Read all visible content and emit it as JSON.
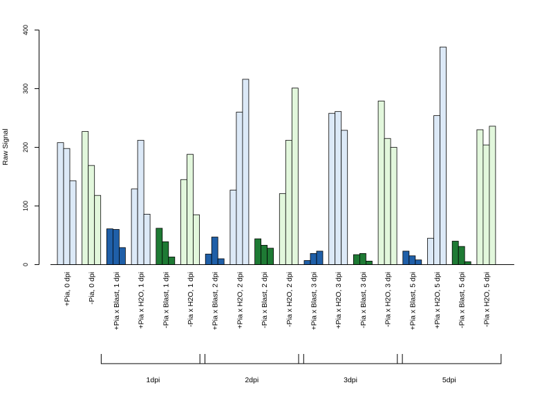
{
  "chart_data": {
    "type": "bar",
    "title": "",
    "xlabel": "",
    "ylabel": "Raw Signal",
    "ylim": [
      0,
      400
    ],
    "yticks": [
      0,
      100,
      200,
      300,
      400
    ],
    "grid": false,
    "legend": "none",
    "colors": {
      "light_blue": "#dce9f7",
      "light_green": "#e2f7dc",
      "dark_blue": "#1f5fa8",
      "dark_green": "#1e7a34",
      "stroke": "#000000"
    },
    "categories": [
      {
        "label": "+Pia, 0 dpi",
        "color": "light_blue",
        "values": [
          208,
          198,
          143
        ]
      },
      {
        "label": "-Pia, 0 dpi",
        "color": "light_green",
        "values": [
          227,
          169,
          118
        ]
      },
      {
        "label": "+Pia x Blast, 1 dpi",
        "color": "dark_blue",
        "values": [
          61,
          60,
          29
        ]
      },
      {
        "label": "+Pia x H2O, 1 dpi",
        "color": "light_blue",
        "values": [
          129,
          212,
          86
        ]
      },
      {
        "label": "-Pia x Blast, 1 dpi",
        "color": "dark_green",
        "values": [
          62,
          39,
          13
        ]
      },
      {
        "label": "-Pia x H2O, 1 dpi",
        "color": "light_green",
        "values": [
          145,
          188,
          85
        ]
      },
      {
        "label": "+Pia x Blast, 2 dpi",
        "color": "dark_blue",
        "values": [
          18,
          47,
          10
        ]
      },
      {
        "label": "+Pia x H2O, 2 dpi",
        "color": "light_blue",
        "values": [
          127,
          260,
          316
        ]
      },
      {
        "label": "-Pia x Blast, 2 dpi",
        "color": "dark_green",
        "values": [
          44,
          33,
          28
        ]
      },
      {
        "label": "-Pia x H2O, 2 dpi",
        "color": "light_green",
        "values": [
          121,
          212,
          301
        ]
      },
      {
        "label": "+Pia x Blast, 3 dpi",
        "color": "dark_blue",
        "values": [
          7,
          19,
          23
        ]
      },
      {
        "label": "+Pia x H2O, 3 dpi",
        "color": "light_blue",
        "values": [
          258,
          261,
          229
        ]
      },
      {
        "label": "-Pia x Blast, 3 dpi",
        "color": "dark_green",
        "values": [
          17,
          19,
          6
        ]
      },
      {
        "label": "-Pia x H2O, 3 dpi",
        "color": "light_green",
        "values": [
          279,
          215,
          200
        ]
      },
      {
        "label": "+Pia x Blast, 5 dpi",
        "color": "dark_blue",
        "values": [
          23,
          15,
          8
        ]
      },
      {
        "label": "+Pia x H2O, 5 dpi",
        "color": "light_blue",
        "values": [
          45,
          254,
          371
        ]
      },
      {
        "label": "-Pia x Blast, 5 dpi",
        "color": "dark_green",
        "values": [
          40,
          31,
          5
        ]
      },
      {
        "label": "-Pia x H2O, 5 dpi",
        "color": "light_green",
        "values": [
          230,
          204,
          236
        ]
      }
    ],
    "groups": [
      {
        "label": "1dpi",
        "first_category": 2,
        "last_category": 5
      },
      {
        "label": "2dpi",
        "first_category": 6,
        "last_category": 9
      },
      {
        "label": "3dpi",
        "first_category": 10,
        "last_category": 13
      },
      {
        "label": "5dpi",
        "first_category": 14,
        "last_category": 17
      }
    ]
  }
}
